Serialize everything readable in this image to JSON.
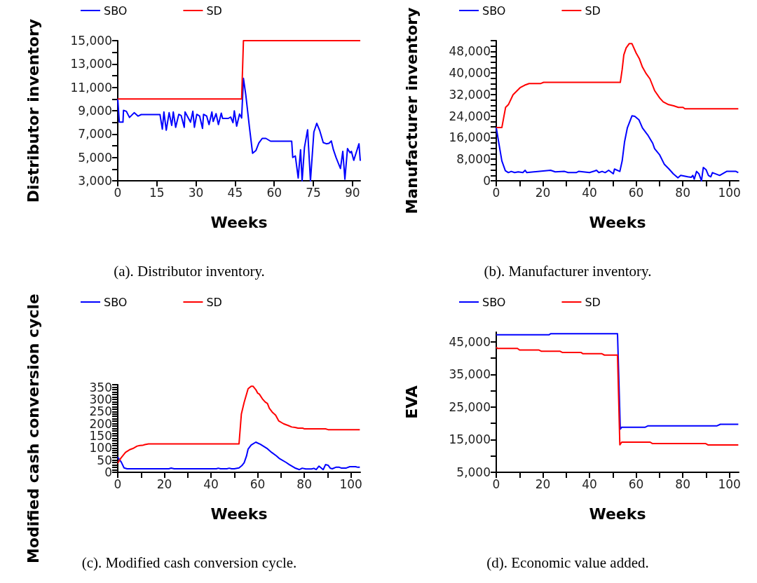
{
  "chart_data": [
    {
      "type": "line",
      "title": "(a). Distributor inventory.",
      "xlabel": "Weeks",
      "ylabel": "Distributor inventory",
      "legend": "top",
      "marker": "none",
      "line_style": "solid",
      "grid": false,
      "xlim": [
        0,
        93
      ],
      "xticks": [
        0,
        15,
        30,
        45,
        60,
        75,
        90
      ],
      "ylim": [
        3000,
        15000
      ],
      "yticks": [
        {
          "value": 3000,
          "label": "3,000"
        },
        {
          "value": 4000,
          "label": null
        },
        {
          "value": 5000,
          "label": "5,000"
        },
        {
          "value": 6000,
          "label": null
        },
        {
          "value": 7000,
          "label": "7,000"
        },
        {
          "value": 8000,
          "label": null
        },
        {
          "value": 9000,
          "label": "9,000"
        },
        {
          "value": 10000,
          "label": null
        },
        {
          "value": 11000,
          "label": "11,000"
        },
        {
          "value": 12000,
          "label": null
        },
        {
          "value": 13000,
          "label": "13,000"
        },
        {
          "value": 14000,
          "label": null
        },
        {
          "value": 15000,
          "label": "15,000"
        }
      ],
      "series": [
        {
          "name": "SBO",
          "color": "#0000ff",
          "x": [
            0,
            0.6,
            2,
            2.2,
            3.3,
            4.5,
            6.3,
            7.8,
            9,
            16.2,
            17.1,
            17.7,
            18.6,
            19.7,
            20.7,
            21.3,
            22.2,
            23.4,
            24.3,
            25.5,
            25.8,
            27.9,
            28.8,
            29.4,
            30.3,
            31.4,
            32.5,
            32.9,
            34.1,
            35,
            36.1,
            36.6,
            37.7,
            38.6,
            39.7,
            40.2,
            42.4,
            43.3,
            44.2,
            44.7,
            45.6,
            46.7,
            47.5,
            48.2,
            49.1,
            50.5,
            51.7,
            53,
            54.1,
            55.4,
            56.8,
            58.6,
            66.7,
            67.1,
            68.1,
            69.2,
            70.1,
            70.7,
            71.6,
            72.8,
            73.9,
            75.2,
            76.3,
            77.4,
            78.8,
            80,
            81,
            81.9,
            82.7,
            83.7,
            85.4,
            86.3,
            87.1,
            88.1,
            89.1,
            89.6,
            90.5,
            92.5,
            93
          ],
          "values": [
            10000,
            8020,
            8020,
            9030,
            8950,
            8420,
            8830,
            8540,
            8670,
            8670,
            7420,
            8890,
            7330,
            8830,
            7740,
            8890,
            7580,
            8690,
            8590,
            7580,
            8890,
            8020,
            8950,
            7580,
            8690,
            8540,
            7480,
            8690,
            8540,
            7820,
            8890,
            8080,
            8750,
            7820,
            8790,
            8340,
            8340,
            8460,
            7980,
            8990,
            7680,
            8710,
            8380,
            11770,
            10360,
            7580,
            5360,
            5600,
            6230,
            6630,
            6630,
            6390,
            6390,
            5000,
            5120,
            3240,
            5660,
            3000,
            5860,
            7370,
            3000,
            7170,
            7920,
            7330,
            6270,
            6170,
            6210,
            6410,
            5660,
            5000,
            4050,
            5520,
            3140,
            5760,
            5400,
            5520,
            4750,
            6170,
            4710
          ]
        },
        {
          "name": "SD",
          "color": "#ff0000",
          "x": [
            0,
            47.5,
            48.2,
            93
          ],
          "values": [
            10000,
            10000,
            15000,
            15000
          ]
        }
      ]
    },
    {
      "type": "line",
      "title": "(b). Manufacturer inventory.",
      "xlabel": "Weeks",
      "ylabel": "Manufacturer inventory",
      "legend": "top",
      "marker": "none",
      "line_style": "solid",
      "grid": false,
      "xlim": [
        0,
        104
      ],
      "xticks": [
        0,
        {
          "value": 10,
          "label": null
        },
        20,
        {
          "value": 30,
          "label": null
        },
        40,
        {
          "value": 50,
          "label": null
        },
        60,
        {
          "value": 70,
          "label": null
        },
        80,
        {
          "value": 90,
          "label": null
        },
        100
      ],
      "ylim": [
        0,
        52000
      ],
      "yticks": [
        0,
        {
          "value": 2000,
          "label": null
        },
        {
          "value": 4000,
          "label": null
        },
        {
          "value": 6000,
          "label": null
        },
        {
          "value": 8000,
          "label": "8,000"
        },
        {
          "value": 10000,
          "label": null
        },
        {
          "value": 12000,
          "label": null
        },
        {
          "value": 14000,
          "label": null
        },
        {
          "value": 16000,
          "label": "16,000"
        },
        {
          "value": 18000,
          "label": null
        },
        {
          "value": 20000,
          "label": null
        },
        {
          "value": 22000,
          "label": null
        },
        {
          "value": 24000,
          "label": "24,000"
        },
        {
          "value": 26000,
          "label": null
        },
        {
          "value": 28000,
          "label": null
        },
        {
          "value": 30000,
          "label": null
        },
        {
          "value": 32000,
          "label": "32,000"
        },
        {
          "value": 34000,
          "label": null
        },
        {
          "value": 36000,
          "label": null
        },
        {
          "value": 38000,
          "label": null
        },
        {
          "value": 40000,
          "label": "40,000"
        },
        {
          "value": 42000,
          "label": null
        },
        {
          "value": 44000,
          "label": null
        },
        {
          "value": 46000,
          "label": null
        },
        {
          "value": 48000,
          "label": "48,000"
        },
        {
          "value": 50000,
          "label": null
        },
        {
          "value": 52000,
          "label": null
        }
      ],
      "series": [
        {
          "name": "SBO",
          "color": "#0000ff",
          "x": [
            0,
            1.2,
            2.4,
            3.9,
            5.2,
            6.4,
            7.9,
            9.4,
            11.4,
            12.4,
            13.1,
            23.3,
            25.3,
            29.3,
            30.8,
            34.3,
            35.3,
            40,
            42.2,
            43,
            44,
            45.4,
            46.7,
            48.2,
            50.2,
            50.7,
            53,
            54,
            55,
            56.2,
            58.2,
            59.4,
            61.2,
            62.7,
            65,
            67.1,
            67.9,
            70.1,
            72.1,
            74.1,
            75.9,
            77.9,
            79.1,
            82.1,
            83.6,
            84.3,
            84.9,
            85.9,
            86.9,
            88,
            88.8,
            90,
            91,
            92,
            92.7,
            95.8,
            98.8,
            102.8,
            103.8
          ],
          "values": [
            19740,
            13480,
            7390,
            3740,
            3040,
            3480,
            3040,
            3300,
            3040,
            3910,
            3040,
            3910,
            3300,
            3480,
            3040,
            3040,
            3480,
            3040,
            3650,
            3910,
            3040,
            3480,
            3040,
            3910,
            2610,
            4350,
            3480,
            7390,
            14350,
            19570,
            24090,
            23910,
            22610,
            19570,
            16960,
            13910,
            11910,
            9570,
            6090,
            4350,
            2610,
            1130,
            2000,
            1480,
            1300,
            2000,
            610,
            3480,
            2610,
            0,
            4960,
            4090,
            2000,
            1480,
            3040,
            2000,
            3480,
            3480,
            3040
          ]
        },
        {
          "name": "SD",
          "color": "#ff0000",
          "x": [
            0,
            2.4,
            3.2,
            4,
            5.2,
            7.2,
            10.2,
            12.2,
            14.1,
            19.1,
            20.3,
            53.2,
            54,
            54.7,
            55.7,
            57,
            58.2,
            60,
            61.4,
            62.7,
            64.3,
            65.9,
            67.9,
            70.1,
            71.6,
            73.9,
            76.1,
            78.1,
            80.1,
            80.9,
            103.8
          ],
          "values": [
            19740,
            19740,
            23480,
            27220,
            28260,
            31910,
            34520,
            35480,
            36090,
            36090,
            36520,
            36520,
            41300,
            46700,
            49300,
            50870,
            50870,
            47390,
            45220,
            42170,
            39740,
            37830,
            33480,
            30700,
            29300,
            28260,
            27830,
            27220,
            27220,
            26700,
            26700
          ]
        }
      ]
    },
    {
      "type": "line",
      "title": "(c). Modified cash conversion cycle.",
      "xlabel": "Weeks",
      "ylabel": "Modified cash conversion cycle",
      "legend": "top",
      "marker": "none",
      "line_style": "solid",
      "grid": false,
      "xlim": [
        0,
        104
      ],
      "xticks": [
        0,
        {
          "value": 10,
          "label": null
        },
        20,
        {
          "value": 30,
          "label": null
        },
        40,
        {
          "value": 50,
          "label": null
        },
        60,
        {
          "value": 70,
          "label": null
        },
        80,
        {
          "value": 90,
          "label": null
        },
        100
      ],
      "ylim": [
        0,
        360
      ],
      "yticks": [
        0,
        {
          "value": 10,
          "label": null
        },
        {
          "value": 20,
          "label": null
        },
        {
          "value": 30,
          "label": null
        },
        {
          "value": 40,
          "label": null
        },
        50,
        {
          "value": 60,
          "label": null
        },
        {
          "value": 70,
          "label": null
        },
        {
          "value": 80,
          "label": null
        },
        {
          "value": 90,
          "label": null
        },
        100,
        {
          "value": 110,
          "label": null
        },
        {
          "value": 120,
          "label": null
        },
        {
          "value": 130,
          "label": null
        },
        {
          "value": 140,
          "label": null
        },
        150,
        {
          "value": 160,
          "label": null
        },
        {
          "value": 170,
          "label": null
        },
        {
          "value": 180,
          "label": null
        },
        {
          "value": 190,
          "label": null
        },
        200,
        {
          "value": 210,
          "label": null
        },
        {
          "value": 220,
          "label": null
        },
        {
          "value": 230,
          "label": null
        },
        {
          "value": 240,
          "label": null
        },
        250,
        {
          "value": 260,
          "label": null
        },
        {
          "value": 270,
          "label": null
        },
        {
          "value": 280,
          "label": null
        },
        {
          "value": 290,
          "label": null
        },
        300,
        {
          "value": 310,
          "label": null
        },
        {
          "value": 320,
          "label": null
        },
        {
          "value": 330,
          "label": null
        },
        {
          "value": 340,
          "label": null
        },
        350,
        {
          "value": 360,
          "label": null
        }
      ],
      "series": [
        {
          "name": "SBO",
          "color": "#0000ff",
          "x": [
            0,
            1.5,
            2.7,
            4,
            21.9,
            22.9,
            24.2,
            42.3,
            43.1,
            44.1,
            46.8,
            47.8,
            48.8,
            50,
            52,
            53.2,
            54.2,
            55.2,
            55.9,
            57.2,
            59.2,
            61.2,
            64.2,
            66,
            68,
            69.2,
            72.1,
            73.6,
            75.9,
            77.9,
            79.1,
            80.6,
            83.1,
            84.1,
            85.1,
            86.3,
            88.1,
            89.1,
            90.2,
            91.2,
            92,
            93.5,
            95,
            95.8,
            98,
            99.5,
            102,
            103,
            103.8
          ],
          "values": [
            61.7,
            42.3,
            18.1,
            14.5,
            14.5,
            17.5,
            14.5,
            14.5,
            16.9,
            14.5,
            14.5,
            16.9,
            14.5,
            14.5,
            18.1,
            27.2,
            39.3,
            66.5,
            95.6,
            111.9,
            124,
            114.9,
            96.8,
            81.7,
            67.8,
            57.5,
            41.1,
            31.5,
            18.1,
            10.9,
            16.9,
            13.9,
            13.9,
            16.3,
            10.9,
            25.4,
            10.9,
            31.5,
            29,
            16.3,
            14.5,
            20.6,
            20.6,
            17.5,
            17.5,
            23,
            23,
            20.6,
            20.6
          ]
        },
        {
          "name": "SD",
          "color": "#ff0000",
          "x": [
            0,
            1.5,
            3.3,
            5.3,
            6.5,
            8.3,
            9.5,
            10.6,
            11.6,
            13.2,
            52,
            53,
            54.2,
            55.9,
            57.2,
            58,
            59.2,
            60,
            60.7,
            62,
            63.2,
            64.2,
            65,
            66.2,
            67.7,
            69,
            71.1,
            73.1,
            74.6,
            76.1,
            77.3,
            79.3,
            80.1,
            89.1,
            90.2,
            103.8
          ],
          "values": [
            37.5,
            60.5,
            81.7,
            93.8,
            98,
            107.7,
            110,
            110.7,
            113.7,
            116.8,
            116.8,
            239,
            287.4,
            343.6,
            353.9,
            353.9,
            340,
            325.5,
            321.8,
            302.5,
            289.2,
            283.1,
            263.2,
            248,
            234.7,
            211.7,
            199.6,
            192.4,
            186.3,
            184.5,
            181.5,
            181.5,
            178.5,
            178.5,
            175.4,
            175.4
          ]
        }
      ]
    },
    {
      "type": "line",
      "title": "(d). Economic value added.",
      "xlabel": "Weeks",
      "ylabel": "EVA",
      "legend": "top",
      "marker": "none",
      "line_style": "solid",
      "grid": false,
      "xlim": [
        0,
        104
      ],
      "xticks": [
        0,
        {
          "value": 10,
          "label": null
        },
        20,
        {
          "value": 30,
          "label": null
        },
        40,
        {
          "value": 50,
          "label": null
        },
        60,
        {
          "value": 70,
          "label": null
        },
        80,
        {
          "value": 90,
          "label": null
        },
        100
      ],
      "ylim": [
        5000,
        48000
      ],
      "yticks": [
        {
          "value": 5000,
          "label": "5,000"
        },
        {
          "value": 10000,
          "label": null
        },
        {
          "value": 15000,
          "label": "15,000"
        },
        {
          "value": 20000,
          "label": null
        },
        {
          "value": 25000,
          "label": "25,000"
        },
        {
          "value": 30000,
          "label": null
        },
        {
          "value": 35000,
          "label": "35,000"
        },
        {
          "value": 40000,
          "label": null
        },
        {
          "value": 45000,
          "label": "45,000"
        }
      ],
      "series": [
        {
          "name": "SBO",
          "color": "#0000ff",
          "x": [
            0,
            22.6,
            23.4,
            52,
            53.2,
            53.8,
            63.9,
            65.1,
            94.7,
            96.1,
            103.8
          ],
          "values": [
            47190,
            47190,
            47530,
            47530,
            18220,
            18840,
            18840,
            19250,
            19250,
            19730,
            19730
          ]
        },
        {
          "name": "SD",
          "color": "#ff0000",
          "x": [
            0,
            0.5,
            9.1,
            10,
            18.2,
            19.4,
            27.4,
            28.3,
            36.3,
            37.2,
            45.3,
            46.4,
            52,
            53,
            53.8,
            66,
            66.9,
            89.7,
            90.9,
            103.8
          ],
          "values": [
            43360,
            43010,
            43010,
            42530,
            42530,
            42120,
            42120,
            41780,
            41780,
            41370,
            41370,
            40960,
            40960,
            13420,
            14250,
            14250,
            13840,
            13840,
            13360,
            13360
          ]
        }
      ]
    }
  ]
}
